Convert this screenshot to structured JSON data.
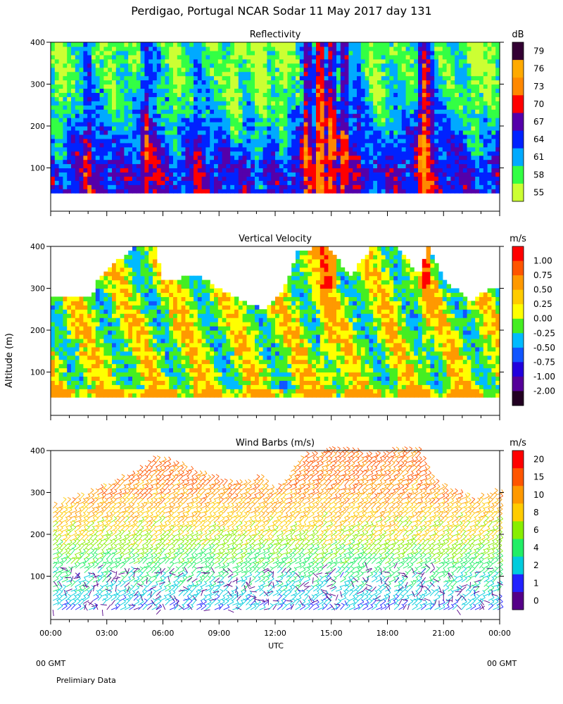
{
  "figure": {
    "title": "Perdigao, Portugal  NCAR Sodar  11 May 2017  day 131",
    "ylabel": "Altitude (m)",
    "xlabel": "UTC",
    "left_footer": "00 GMT",
    "right_footer": "00 GMT",
    "note": "Prelimiary Data"
  },
  "chart_data": [
    {
      "type": "heatmap",
      "title": "Reflectivity",
      "unit": "dB",
      "x_ticks": [
        "00:00",
        "03:00",
        "06:00",
        "09:00",
        "12:00",
        "15:00",
        "18:00",
        "21:00",
        "00:00"
      ],
      "x_range_hours": [
        0,
        24
      ],
      "y_ticks": [
        100,
        200,
        300,
        400
      ],
      "ylim": [
        10,
        400
      ],
      "data_altitude_range": [
        40,
        400
      ],
      "colorbar": {
        "levels": [
          "79",
          "76",
          "73",
          "70",
          "67",
          "64",
          "61",
          "58",
          "55"
        ],
        "colors": [
          "#330033",
          "#ffaa00",
          "#ff8800",
          "#ff0000",
          "#5500aa",
          "#0022ff",
          "#00aaff",
          "#33ff44",
          "#ccff33"
        ]
      },
      "texture": {
        "baseline": [
          [
            40,
            66
          ],
          [
            100,
            66
          ],
          [
            150,
            64
          ],
          [
            200,
            62
          ],
          [
            250,
            60
          ],
          [
            300,
            59
          ],
          [
            400,
            58
          ]
        ],
        "hot_columns": [
          [
            2.0,
            5
          ],
          [
            2.8,
            3
          ],
          [
            5.1,
            6
          ],
          [
            5.6,
            3
          ],
          [
            7.9,
            3
          ],
          [
            13.7,
            9
          ],
          [
            14.4,
            12
          ],
          [
            15.0,
            10
          ],
          [
            15.7,
            8
          ],
          [
            16.4,
            4
          ],
          [
            19.9,
            10
          ],
          [
            20.3,
            6
          ]
        ],
        "cool_columns": [
          [
            0.5,
            -4
          ],
          [
            3.0,
            -3
          ],
          [
            6.7,
            -3
          ],
          [
            9.8,
            -4
          ],
          [
            11.2,
            -5
          ],
          [
            12.4,
            -4
          ],
          [
            17.5,
            -3
          ],
          [
            22.7,
            -4
          ],
          [
            23.5,
            -3
          ]
        ]
      }
    },
    {
      "type": "heatmap",
      "title": "Vertical Velocity",
      "unit": "m/s",
      "x_ticks": [
        "00:00",
        "03:00",
        "06:00",
        "09:00",
        "12:00",
        "15:00",
        "18:00",
        "21:00",
        "00:00"
      ],
      "x_range_hours": [
        0,
        24
      ],
      "y_ticks": [
        100,
        200,
        300,
        400
      ],
      "ylim": [
        10,
        400
      ],
      "data_altitude_range": [
        40,
        400
      ],
      "colorbar": {
        "levels": [
          "1.00",
          "0.75",
          "0.50",
          "0.25",
          "0.00",
          "-0.25",
          "-0.50",
          "-0.75",
          "-1.00",
          "-2.00"
        ],
        "colors": [
          "#ff0000",
          "#ff5500",
          "#ff9900",
          "#ffcc00",
          "#ffff00",
          "#44ee22",
          "#00bbff",
          "#1155ff",
          "#2200dd",
          "#550099",
          "#220022"
        ]
      },
      "data_top_profile": [
        [
          0.0,
          280
        ],
        [
          2.2,
          280
        ],
        [
          2.6,
          330
        ],
        [
          4.5,
          400
        ],
        [
          5.6,
          400
        ],
        [
          6.0,
          320
        ],
        [
          8.0,
          330
        ],
        [
          9.0,
          300
        ],
        [
          10.2,
          270
        ],
        [
          11.5,
          250
        ],
        [
          12.5,
          300
        ],
        [
          13.2,
          390
        ],
        [
          14.8,
          400
        ],
        [
          16.0,
          330
        ],
        [
          17.2,
          400
        ],
        [
          18.5,
          400
        ],
        [
          19.7,
          330
        ],
        [
          20.2,
          400
        ],
        [
          21.0,
          320
        ],
        [
          22.5,
          270
        ],
        [
          23.5,
          300
        ],
        [
          24.0,
          300
        ]
      ]
    },
    {
      "type": "wind-barbs",
      "title": "Wind Barbs (m/s)",
      "unit": "m/s",
      "x_ticks": [
        "00:00",
        "03:00",
        "06:00",
        "09:00",
        "12:00",
        "15:00",
        "18:00",
        "21:00",
        "00:00"
      ],
      "x_range_hours": [
        0,
        24
      ],
      "y_ticks": [
        100,
        200,
        300,
        400
      ],
      "ylim": [
        10,
        400
      ],
      "colorbar": {
        "levels": [
          "20",
          "15",
          "10",
          "8",
          "6",
          "4",
          "2",
          "1",
          "0"
        ],
        "colors": [
          "#ff0000",
          "#ff5500",
          "#ff9900",
          "#ffcc00",
          "#88ee00",
          "#22ee66",
          "#00ccdd",
          "#2222ff",
          "#550088"
        ]
      },
      "speed_profile_m_s": [
        [
          20,
          2.0
        ],
        [
          60,
          2.6
        ],
        [
          100,
          3.3
        ],
        [
          150,
          5.0
        ],
        [
          200,
          7.0
        ],
        [
          250,
          8.8
        ],
        [
          300,
          10.5
        ],
        [
          400,
          12.5
        ]
      ],
      "barb_top_profile": [
        [
          0.0,
          265
        ],
        [
          2.2,
          300
        ],
        [
          3.8,
          330
        ],
        [
          5.7,
          380
        ],
        [
          7.5,
          350
        ],
        [
          9.5,
          320
        ],
        [
          11.2,
          330
        ],
        [
          12.0,
          300
        ],
        [
          13.5,
          390
        ],
        [
          15.5,
          400
        ],
        [
          17.0,
          390
        ],
        [
          19.5,
          400
        ],
        [
          20.5,
          320
        ],
        [
          22.5,
          280
        ],
        [
          24.0,
          300
        ]
      ]
    }
  ]
}
